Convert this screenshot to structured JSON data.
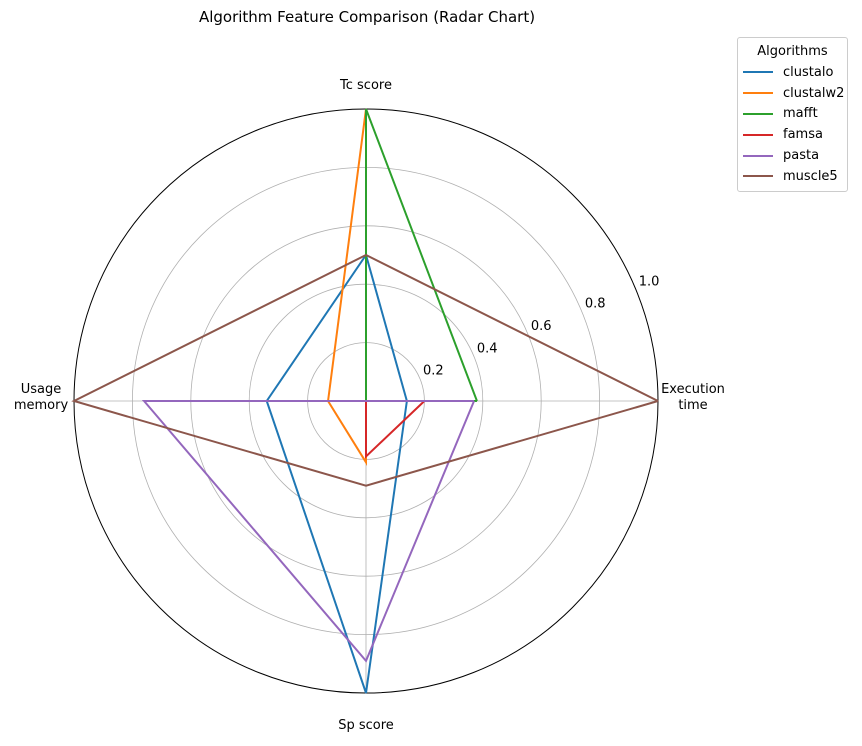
{
  "chart_data": {
    "type": "radar",
    "title": "Algorithm Feature Comparison (Radar Chart)",
    "axes": [
      "Execution\ntime",
      "Tc score",
      "Usage\nmemory",
      "Sp score"
    ],
    "rlim": [
      0,
      1.0
    ],
    "rticks": [
      "0.2",
      "0.4",
      "0.6",
      "0.8",
      "1.0"
    ],
    "grid": true,
    "legend": {
      "title": "Algorithms",
      "placement": "outside-top-right"
    },
    "series": [
      {
        "name": "clustalo",
        "color": "#1f77b4",
        "values": [
          0.14,
          0.5,
          0.34,
          1.0
        ]
      },
      {
        "name": "clustalw2",
        "color": "#ff7f0e",
        "values": [
          0.0,
          1.0,
          0.13,
          0.21
        ]
      },
      {
        "name": "mafft",
        "color": "#2ca02c",
        "values": [
          0.38,
          1.0,
          0.0,
          0.0
        ]
      },
      {
        "name": "famsa",
        "color": "#d62728",
        "values": [
          0.2,
          0.0,
          0.0,
          0.19
        ]
      },
      {
        "name": "pasta",
        "color": "#9467bd",
        "values": [
          0.37,
          0.0,
          0.76,
          0.89
        ]
      },
      {
        "name": "muscle5",
        "color": "#8c564b",
        "values": [
          1.0,
          0.5,
          1.0,
          0.29
        ]
      }
    ]
  }
}
